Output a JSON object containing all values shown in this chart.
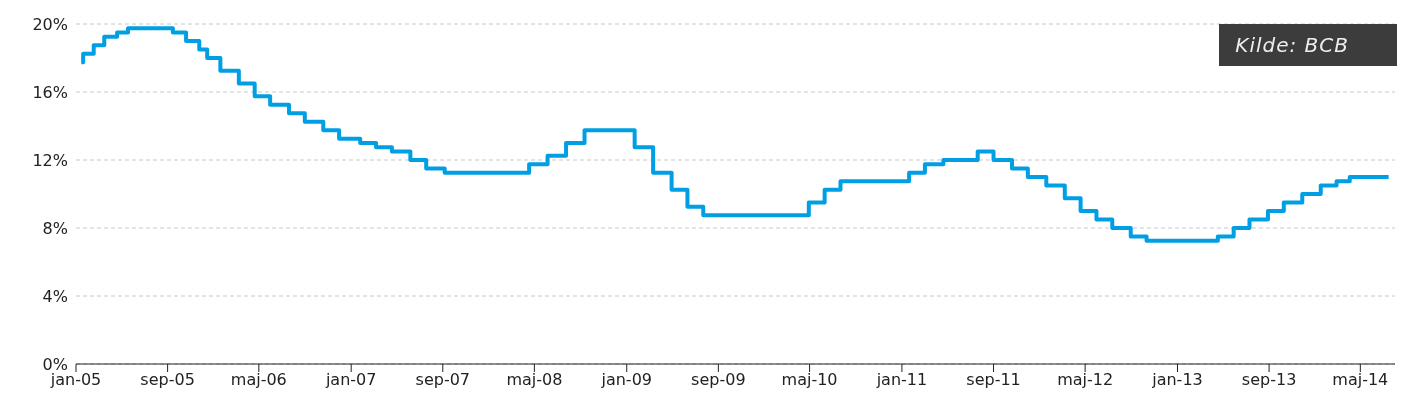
{
  "chart_data": {
    "type": "step",
    "annotations": [
      "Kilde: BCB"
    ],
    "x": [
      "2005-01-15",
      "2005-01-20",
      "2005-02-17",
      "2005-03-17",
      "2005-04-20",
      "2005-05-19",
      "2005-09-15",
      "2005-10-20",
      "2005-11-24",
      "2005-12-15",
      "2006-01-19",
      "2006-03-09",
      "2006-04-20",
      "2006-05-31",
      "2006-07-20",
      "2006-08-31",
      "2006-10-19",
      "2006-11-30",
      "2007-01-25",
      "2007-03-08",
      "2007-04-19",
      "2007-06-07",
      "2007-07-19",
      "2007-09-06",
      "2008-04-17",
      "2008-06-05",
      "2008-07-24",
      "2008-09-11",
      "2009-01-22",
      "2009-03-12",
      "2009-04-30",
      "2009-06-11",
      "2009-07-23",
      "2010-04-29",
      "2010-06-10",
      "2010-07-22",
      "2011-01-20",
      "2011-03-03",
      "2011-04-21",
      "2011-07-21",
      "2011-09-01",
      "2011-10-20",
      "2011-12-01",
      "2012-01-19",
      "2012-03-08",
      "2012-04-19",
      "2012-05-31",
      "2012-07-12",
      "2012-08-30",
      "2012-10-11",
      "2013-04-18",
      "2013-05-30",
      "2013-07-11",
      "2013-08-29",
      "2013-10-10",
      "2013-11-28",
      "2014-01-16",
      "2014-02-27",
      "2014-04-03",
      "2014-07-15"
    ],
    "series": [
      {
        "color": "#009fe3",
        "values": [
          17.75,
          18.25,
          18.75,
          19.25,
          19.5,
          19.75,
          19.5,
          19.0,
          18.5,
          18.0,
          17.25,
          16.5,
          15.75,
          15.25,
          14.75,
          14.25,
          13.75,
          13.25,
          13.0,
          12.75,
          12.5,
          12.0,
          11.5,
          11.25,
          11.75,
          12.25,
          13.0,
          13.75,
          12.75,
          11.25,
          10.25,
          9.25,
          8.75,
          9.5,
          10.25,
          10.75,
          11.25,
          11.75,
          12.0,
          12.5,
          12.0,
          11.5,
          11.0,
          10.5,
          9.75,
          9.0,
          8.5,
          8.0,
          7.5,
          7.25,
          7.5,
          8.0,
          8.5,
          9.0,
          9.5,
          10.0,
          10.5,
          10.75,
          11.0,
          11.0
        ]
      }
    ],
    "xlim": [
      "2005-01-01",
      "2014-08-01"
    ],
    "xticks": [
      {
        "value": "2005-01-01",
        "label": "jan-05"
      },
      {
        "value": "2005-09-01",
        "label": "sep-05"
      },
      {
        "value": "2006-05-01",
        "label": "maj-06"
      },
      {
        "value": "2007-01-01",
        "label": "jan-07"
      },
      {
        "value": "2007-09-01",
        "label": "sep-07"
      },
      {
        "value": "2008-05-01",
        "label": "maj-08"
      },
      {
        "value": "2009-01-01",
        "label": "jan-09"
      },
      {
        "value": "2009-09-01",
        "label": "sep-09"
      },
      {
        "value": "2010-05-01",
        "label": "maj-10"
      },
      {
        "value": "2011-01-01",
        "label": "jan-11"
      },
      {
        "value": "2011-09-01",
        "label": "sep-11"
      },
      {
        "value": "2012-05-01",
        "label": "maj-12"
      },
      {
        "value": "2013-01-01",
        "label": "jan-13"
      },
      {
        "value": "2013-09-01",
        "label": "sep-13"
      },
      {
        "value": "2014-05-01",
        "label": "maj-14"
      }
    ],
    "ylim": [
      0,
      20
    ],
    "yticks": [
      {
        "value": 0,
        "label": "0%"
      },
      {
        "value": 4,
        "label": "4%"
      },
      {
        "value": 8,
        "label": "8%"
      },
      {
        "value": 12,
        "label": "12%"
      },
      {
        "value": 16,
        "label": "16%"
      },
      {
        "value": 20,
        "label": "20%"
      }
    ],
    "grid": "y",
    "legend": false,
    "line_style": "solid",
    "marker": "none"
  }
}
